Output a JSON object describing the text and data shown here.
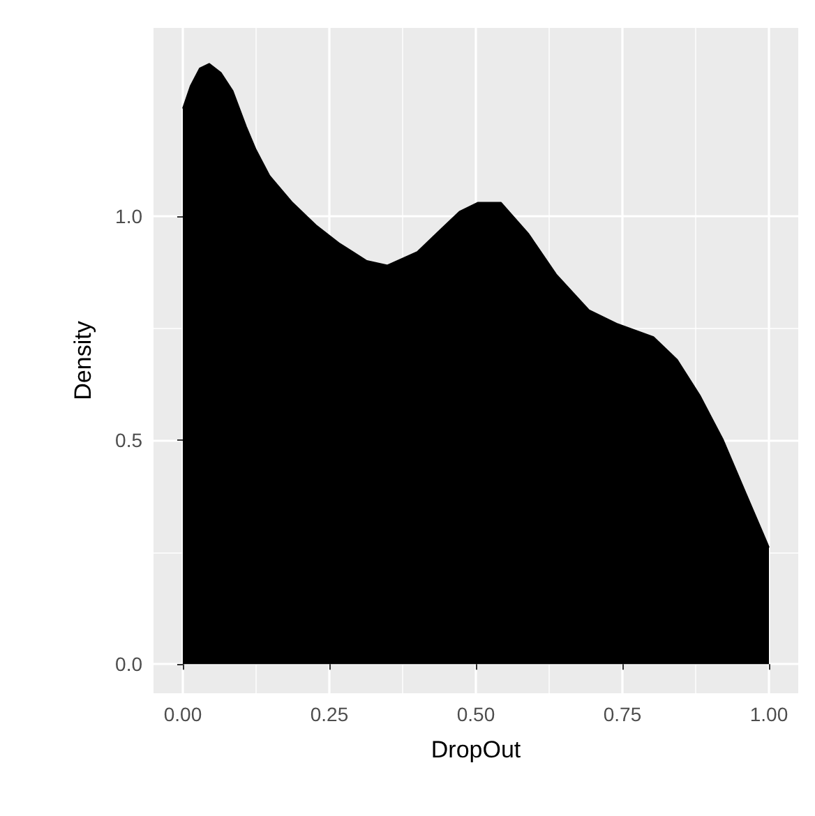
{
  "chart_data": {
    "type": "area",
    "xlabel": "DropOut",
    "ylabel": "Density",
    "x": [
      0,
      0.013,
      0.029,
      0.045,
      0.065,
      0.085,
      0.108,
      0.124,
      0.148,
      0.187,
      0.227,
      0.266,
      0.314,
      0.349,
      0.4,
      0.44,
      0.472,
      0.503,
      0.543,
      0.59,
      0.637,
      0.693,
      0.74,
      0.803,
      0.843,
      0.882,
      0.922,
      0.961,
      0.997,
      1
    ],
    "series": [
      {
        "color": "#000000",
        "values": [
          1.24,
          1.29,
          1.33,
          1.34,
          1.32,
          1.28,
          1.2,
          1.15,
          1.09,
          1.03,
          0.98,
          0.94,
          0.9,
          0.89,
          0.92,
          0.97,
          1.01,
          1.03,
          1.03,
          0.96,
          0.87,
          0.79,
          0.76,
          0.73,
          0.68,
          0.6,
          0.5,
          0.38,
          0.27,
          0.26
        ]
      }
    ],
    "xlim": [
      -0.05,
      1.05
    ],
    "ylim": [
      -0.065,
      1.42
    ],
    "xticks": [
      {
        "value": 0,
        "label": "0.00"
      },
      {
        "value": 0.25,
        "label": "0.25"
      },
      {
        "value": 0.5,
        "label": "0.50"
      },
      {
        "value": 0.75,
        "label": "0.75"
      },
      {
        "value": 1,
        "label": "1.00"
      }
    ],
    "yticks": [
      {
        "value": 0,
        "label": "0.0"
      },
      {
        "value": 0.5,
        "label": "0.5"
      },
      {
        "value": 1,
        "label": "1.0"
      }
    ],
    "grid": true
  }
}
